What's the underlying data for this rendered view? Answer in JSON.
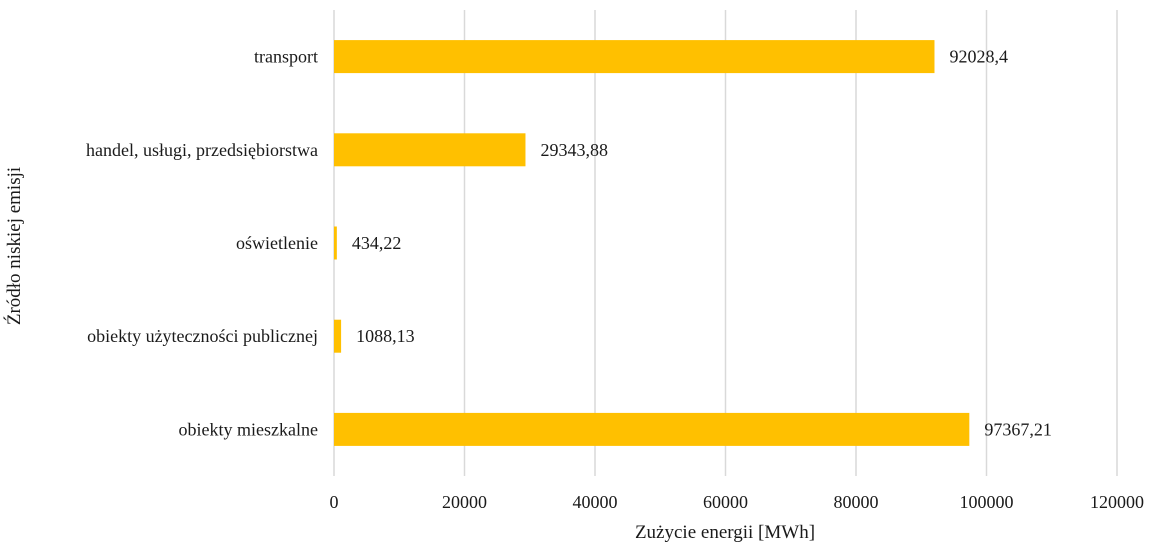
{
  "chart_data": {
    "type": "bar",
    "orientation": "horizontal",
    "categories": [
      "transport",
      "handel, usługi, przedsiębiorstwa",
      "oświetlenie",
      "obiekty użyteczności publicznej",
      "obiekty mieszkalne"
    ],
    "values": [
      92028.4,
      29343.88,
      434.22,
      1088.13,
      97367.21
    ],
    "data_labels": [
      "92028,4",
      "29343,88",
      "434,22",
      "1088,13",
      "97367,21"
    ],
    "title": "",
    "xlabel": "Zużycie energii [MWh]",
    "ylabel": "Źródło niskiej emisji",
    "xlim": [
      0,
      120000
    ],
    "x_ticks": [
      0,
      20000,
      40000,
      60000,
      80000,
      100000,
      120000
    ],
    "x_tick_labels": [
      "0",
      "20000",
      "40000",
      "60000",
      "80000",
      "100000",
      "120000"
    ],
    "grid": "vertical",
    "legend": "none",
    "bar_color": "#FFC000",
    "grid_color": "#D9D9D9"
  }
}
